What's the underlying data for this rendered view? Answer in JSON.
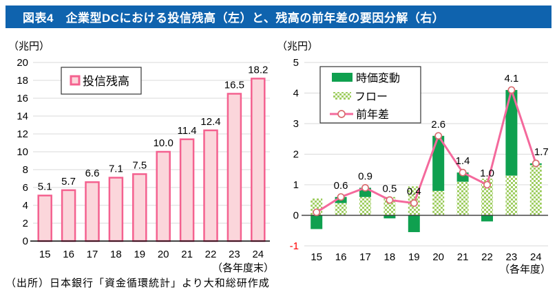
{
  "header": {
    "title": "図表4　企業型DCにおける投信残高（左）と、残高の前年差の要因分解（右）"
  },
  "source": "（出所）日本銀行「資金循環統計」より大和総研作成",
  "colors": {
    "header_bg": "#0F63AE",
    "header_text": "#FFFFFF",
    "bar_fill": "#FBD6DB",
    "bar_border": "#F4618F",
    "solid_green": "#0FA04F",
    "pattern_green": "#A0CE63",
    "line_pink": "#F4699C",
    "marker_stroke": "#D96C70",
    "marker_fill": "#FFFFFF",
    "grid": "#D9D9D9",
    "axis_black": "#000000",
    "zero_line": "#404040",
    "tick_text": "#000000",
    "negative_tick": "#FF0000",
    "legend_border": "#333333"
  },
  "chart_data": [
    {
      "id": "balance-chart",
      "type": "bar",
      "unit_label": "（兆円）",
      "categories": [
        "15",
        "16",
        "17",
        "18",
        "19",
        "20",
        "21",
        "22",
        "23",
        "24"
      ],
      "values": [
        5.1,
        5.7,
        6.6,
        7.1,
        7.5,
        10.0,
        11.4,
        12.4,
        16.5,
        18.2
      ],
      "data_labels": [
        "5.1",
        "5.7",
        "6.6",
        "7.1",
        "7.5",
        "10.0",
        "11.4",
        "12.4",
        "16.5",
        "18.2"
      ],
      "legend": [
        {
          "label": "投信残高",
          "swatch": "pink-bar"
        }
      ],
      "axis_note": "（各年度末）",
      "ylim": [
        0,
        20
      ],
      "ytick_step": 2,
      "grid": true,
      "legend_position": "top-left-inside"
    },
    {
      "id": "yoy-decomposition-chart",
      "type": "stacked-bar-line",
      "unit_label": "（兆円）",
      "categories": [
        "15",
        "16",
        "17",
        "18",
        "19",
        "20",
        "21",
        "22",
        "23",
        "24"
      ],
      "series": [
        {
          "name": "時価変動",
          "role": "bar-solid",
          "values": [
            -0.45,
            0.2,
            0.3,
            -0.1,
            -0.55,
            1.8,
            0.3,
            -0.2,
            2.8,
            0.05
          ]
        },
        {
          "name": "フロー",
          "role": "bar-pattern",
          "values": [
            0.55,
            0.4,
            0.6,
            0.6,
            0.95,
            0.8,
            1.1,
            1.2,
            1.3,
            1.65
          ]
        },
        {
          "name": "前年差",
          "role": "line",
          "values": [
            0.1,
            0.6,
            0.9,
            0.5,
            0.4,
            2.6,
            1.4,
            1.0,
            4.1,
            1.7
          ]
        }
      ],
      "data_labels": [
        "",
        "0.6",
        "0.9",
        "0.5",
        "0.4",
        "2.6",
        "1.4",
        "1.0",
        "4.1",
        "1.7"
      ],
      "axis_note": "（各年度）",
      "ylim": [
        -1,
        5
      ],
      "ytick_step": 1,
      "grid": true,
      "legend_position": "top-left-inside"
    }
  ]
}
